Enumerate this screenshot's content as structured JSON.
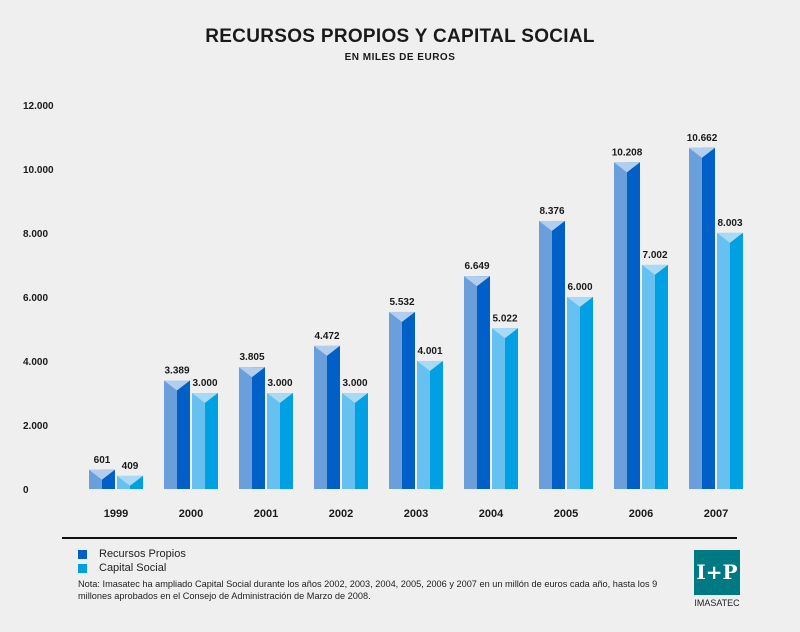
{
  "chart_data": {
    "type": "bar",
    "title": "RECURSOS PROPIOS Y CAPITAL SOCIAL",
    "subtitle": "EN MILES DE EUROS",
    "xlabel": "",
    "ylabel": "",
    "ylim": [
      0,
      12000
    ],
    "yticks": [
      0,
      2000,
      4000,
      6000,
      8000,
      10000,
      12000
    ],
    "ytick_labels": [
      "0",
      "2.000",
      "4.000",
      "6.000",
      "8.000",
      "10.000",
      "12.000"
    ],
    "grid": false,
    "legend_position": "bottom-left",
    "categories": [
      "1999",
      "2000",
      "2001",
      "2002",
      "2003",
      "2004",
      "2005",
      "2006",
      "2007"
    ],
    "series": [
      {
        "name": "Recursos Propios",
        "color": "#0060c8",
        "light": "#6a9fdc",
        "cap": "#b3cdee",
        "values": [
          601,
          3389,
          3805,
          4472,
          5532,
          6649,
          8376,
          10208,
          10662
        ],
        "labels": [
          "601",
          "3.389",
          "3.805",
          "4.472",
          "5.532",
          "6.649",
          "8.376",
          "10.208",
          "10.662"
        ]
      },
      {
        "name": "Capital Social",
        "color": "#00a0e2",
        "light": "#66c0f0",
        "cap": "#a9daf5",
        "values": [
          409,
          3000,
          3000,
          3000,
          4001,
          5022,
          6000,
          7002,
          8003
        ],
        "labels": [
          "409",
          "3.000",
          "3.000",
          "3.000",
          "4.001",
          "5.022",
          "6.000",
          "7.002",
          "8.003"
        ]
      }
    ]
  },
  "footer": {
    "note": "Nota:  Imasatec ha ampliado Capital Social durante los años 2002, 2003, 2004, 2005, 2006 y 2007 en un millón de euros cada año, hasta los 9 millones aprobados en el Consejo de Administración de Marzo de 2008.",
    "logo_text": "IMASATEC",
    "logo_mark": "I+P"
  }
}
